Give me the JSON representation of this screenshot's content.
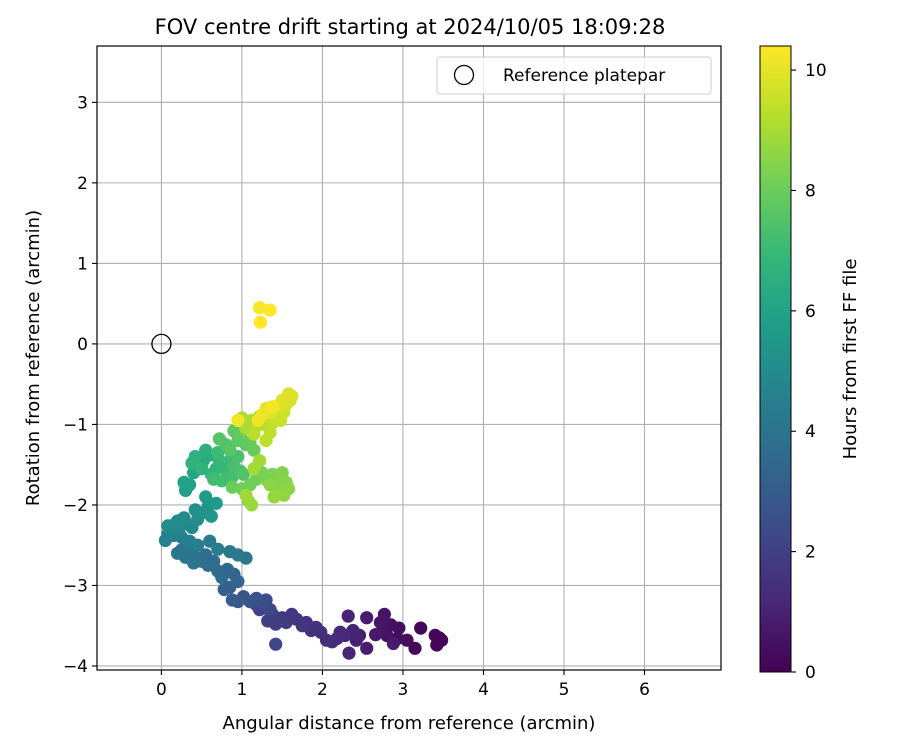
{
  "chart_data": {
    "type": "scatter",
    "title": "FOV centre drift starting at 2024/10/05 18:09:28",
    "xlabel": "Angular distance from reference (arcmin)",
    "ylabel": "Rotation from reference (arcmin)",
    "xlim": [
      -0.8,
      6.95
    ],
    "ylim": [
      -4.05,
      3.7
    ],
    "xticks": [
      0,
      1,
      2,
      3,
      4,
      5,
      6
    ],
    "yticks": [
      -4,
      -3,
      -2,
      -1,
      0,
      1,
      2,
      3
    ],
    "xticklabels": [
      "0",
      "1",
      "2",
      "3",
      "4",
      "5",
      "6"
    ],
    "yticklabels": [
      "−4",
      "−3",
      "−2",
      "−1",
      "0",
      "1",
      "2",
      "3"
    ],
    "grid": true,
    "legend": {
      "placement": "top-right",
      "entries": [
        {
          "label": "Reference platepar",
          "marker": "open-circle"
        }
      ]
    },
    "reference_point": {
      "x": 0,
      "y": 0
    },
    "colorbar": {
      "label": "Hours from first FF file",
      "colormap": "viridis",
      "range": [
        0,
        10.4
      ],
      "ticks": [
        0,
        2,
        4,
        6,
        8,
        10
      ],
      "ticklabels": [
        "0",
        "2",
        "4",
        "6",
        "8",
        "10"
      ]
    },
    "colormap_stops": [
      "#440154",
      "#482878",
      "#3e4989",
      "#31688e",
      "#26828e",
      "#1f9e89",
      "#35b779",
      "#6ece58",
      "#b5de2b",
      "#fde725"
    ],
    "points": [
      [
        3.45,
        -3.65,
        0.0
      ],
      [
        3.48,
        -3.68,
        0.05
      ],
      [
        3.42,
        -3.74,
        0.1
      ],
      [
        3.4,
        -3.62,
        0.15
      ],
      [
        3.22,
        -3.53,
        0.2
      ],
      [
        3.15,
        -3.78,
        0.25
      ],
      [
        3.05,
        -3.68,
        0.3
      ],
      [
        2.95,
        -3.53,
        0.35
      ],
      [
        2.93,
        -3.66,
        0.4
      ],
      [
        2.85,
        -3.49,
        0.45
      ],
      [
        2.8,
        -3.62,
        0.5
      ],
      [
        2.77,
        -3.36,
        0.55
      ],
      [
        2.75,
        -3.56,
        0.6
      ],
      [
        2.72,
        -3.46,
        0.65
      ],
      [
        2.66,
        -3.61,
        0.7
      ],
      [
        2.88,
        -3.72,
        0.75
      ],
      [
        2.55,
        -3.4,
        0.8
      ],
      [
        2.55,
        -3.78,
        0.85
      ],
      [
        2.46,
        -3.62,
        0.9
      ],
      [
        2.42,
        -3.68,
        0.95
      ],
      [
        2.38,
        -3.56,
        1.0
      ],
      [
        2.32,
        -3.38,
        1.05
      ],
      [
        2.33,
        -3.84,
        1.1
      ],
      [
        2.28,
        -3.62,
        1.15
      ],
      [
        2.22,
        -3.58,
        1.2
      ],
      [
        2.18,
        -3.66,
        1.25
      ],
      [
        2.12,
        -3.7,
        1.3
      ],
      [
        2.05,
        -3.68,
        1.35
      ],
      [
        1.98,
        -3.58,
        1.4
      ],
      [
        1.92,
        -3.52,
        1.45
      ],
      [
        1.86,
        -3.56,
        1.5
      ],
      [
        1.8,
        -3.46,
        1.55
      ],
      [
        1.75,
        -3.5,
        1.6
      ],
      [
        1.68,
        -3.42,
        1.65
      ],
      [
        1.62,
        -3.36,
        1.7
      ],
      [
        1.55,
        -3.46,
        1.75
      ],
      [
        1.5,
        -3.4,
        1.8
      ],
      [
        1.42,
        -3.48,
        1.85
      ],
      [
        1.38,
        -3.36,
        1.9
      ],
      [
        1.32,
        -3.44,
        1.95
      ],
      [
        1.28,
        -3.28,
        2.0
      ],
      [
        1.22,
        -3.3,
        2.05
      ],
      [
        1.18,
        -3.24,
        2.1
      ],
      [
        1.42,
        -3.73,
        2.2
      ],
      [
        1.35,
        -3.3,
        2.3
      ],
      [
        1.3,
        -3.18,
        2.4
      ],
      [
        1.25,
        -3.22,
        2.5
      ],
      [
        1.18,
        -3.16,
        2.6
      ],
      [
        1.1,
        -3.2,
        2.7
      ],
      [
        1.02,
        -3.14,
        2.8
      ],
      [
        0.95,
        -3.2,
        2.9
      ],
      [
        0.88,
        -3.18,
        3.0
      ],
      [
        0.85,
        -3.02,
        3.1
      ],
      [
        0.78,
        -3.05,
        3.2
      ],
      [
        0.95,
        -2.95,
        3.3
      ],
      [
        0.9,
        -2.86,
        3.4
      ],
      [
        0.82,
        -2.8,
        3.5
      ],
      [
        0.75,
        -2.9,
        3.55
      ],
      [
        0.7,
        -2.82,
        3.6
      ],
      [
        0.65,
        -2.7,
        3.65
      ],
      [
        0.58,
        -2.75,
        3.7
      ],
      [
        0.55,
        -2.62,
        3.75
      ],
      [
        0.5,
        -2.7,
        3.8
      ],
      [
        0.45,
        -2.66,
        3.85
      ],
      [
        0.4,
        -2.72,
        3.9
      ],
      [
        0.35,
        -2.6,
        3.95
      ],
      [
        0.3,
        -2.65,
        4.0
      ],
      [
        0.25,
        -2.56,
        4.05
      ],
      [
        0.2,
        -2.6,
        4.1
      ],
      [
        1.05,
        -2.66,
        4.15
      ],
      [
        0.95,
        -2.62,
        4.2
      ],
      [
        0.85,
        -2.58,
        4.25
      ],
      [
        0.7,
        -2.55,
        4.3
      ],
      [
        0.6,
        -2.45,
        4.35
      ],
      [
        0.45,
        -2.5,
        4.4
      ],
      [
        0.35,
        -2.45,
        4.45
      ],
      [
        0.25,
        -2.4,
        4.5
      ],
      [
        0.15,
        -2.38,
        4.55
      ],
      [
        0.08,
        -2.36,
        4.6
      ],
      [
        0.05,
        -2.44,
        4.65
      ],
      [
        0.1,
        -2.3,
        4.7
      ],
      [
        0.15,
        -2.25,
        4.75
      ],
      [
        0.22,
        -2.3,
        4.8
      ],
      [
        0.3,
        -2.22,
        4.85
      ],
      [
        0.38,
        -2.28,
        4.9
      ],
      [
        0.28,
        -2.16,
        4.95
      ],
      [
        0.2,
        -2.2,
        5.0
      ],
      [
        0.08,
        -2.26,
        5.05
      ],
      [
        0.45,
        -2.18,
        5.1
      ],
      [
        0.42,
        -2.06,
        5.2
      ],
      [
        0.5,
        -2.1,
        5.3
      ],
      [
        0.58,
        -2.02,
        5.4
      ],
      [
        0.62,
        -2.14,
        5.5
      ],
      [
        0.68,
        -1.98,
        5.6
      ],
      [
        0.55,
        -1.9,
        5.7
      ],
      [
        0.3,
        -1.82,
        5.8
      ],
      [
        0.35,
        -1.75,
        5.9
      ],
      [
        0.28,
        -1.72,
        6.0
      ],
      [
        0.4,
        -1.6,
        6.1
      ],
      [
        0.45,
        -1.5,
        6.2
      ],
      [
        0.52,
        -1.45,
        6.3
      ],
      [
        0.6,
        -1.38,
        6.4
      ],
      [
        0.55,
        -1.32,
        6.5
      ],
      [
        0.42,
        -1.4,
        6.6
      ],
      [
        0.38,
        -1.48,
        6.7
      ],
      [
        0.5,
        -1.55,
        6.75
      ],
      [
        0.62,
        -1.62,
        6.8
      ],
      [
        0.68,
        -1.55,
        6.85
      ],
      [
        0.72,
        -1.45,
        6.9
      ],
      [
        0.78,
        -1.5,
        6.95
      ],
      [
        0.82,
        -1.6,
        7.0
      ],
      [
        0.85,
        -1.45,
        7.05
      ],
      [
        0.7,
        -1.35,
        7.1
      ],
      [
        0.65,
        -1.68,
        7.15
      ],
      [
        0.75,
        -1.7,
        7.2
      ],
      [
        0.88,
        -1.65,
        7.25
      ],
      [
        0.9,
        -1.52,
        7.3
      ],
      [
        0.95,
        -1.4,
        7.35
      ],
      [
        0.98,
        -1.58,
        7.4
      ],
      [
        1.02,
        -1.62,
        7.5
      ],
      [
        0.8,
        -1.25,
        7.55
      ],
      [
        0.72,
        -1.18,
        7.6
      ],
      [
        0.85,
        -1.32,
        7.65
      ],
      [
        0.95,
        -1.2,
        7.7
      ],
      [
        1.05,
        -1.25,
        7.75
      ],
      [
        0.9,
        -1.08,
        7.8
      ],
      [
        0.98,
        -1.15,
        7.85
      ],
      [
        1.1,
        -1.22,
        7.9
      ],
      [
        1.15,
        -1.32,
        7.95
      ],
      [
        0.88,
        -1.78,
        8.0
      ],
      [
        1.0,
        -1.8,
        8.05
      ],
      [
        1.1,
        -1.75,
        8.1
      ],
      [
        1.18,
        -1.68,
        8.15
      ],
      [
        1.25,
        -1.6,
        8.2
      ],
      [
        1.32,
        -1.7,
        8.25
      ],
      [
        1.38,
        -1.62,
        8.3
      ],
      [
        1.45,
        -1.68,
        8.35
      ],
      [
        1.5,
        -1.6,
        8.4
      ],
      [
        1.55,
        -1.72,
        8.45
      ],
      [
        1.45,
        -1.82,
        8.5
      ],
      [
        1.35,
        -1.75,
        8.55
      ],
      [
        1.58,
        -1.8,
        8.6
      ],
      [
        1.52,
        -1.88,
        8.65
      ],
      [
        1.4,
        -1.9,
        8.7
      ],
      [
        1.08,
        -1.95,
        8.75
      ],
      [
        1.12,
        -2.0,
        8.8
      ],
      [
        1.05,
        -1.88,
        8.85
      ],
      [
        1.15,
        -1.55,
        8.9
      ],
      [
        1.22,
        -1.45,
        8.95
      ],
      [
        1.05,
        -1.05,
        9.0
      ],
      [
        1.12,
        -0.95,
        9.05
      ],
      [
        1.0,
        -0.92,
        9.1
      ],
      [
        1.18,
        -1.02,
        9.15
      ],
      [
        1.22,
        -0.9,
        9.2
      ],
      [
        1.28,
        -1.0,
        9.25
      ],
      [
        1.15,
        -1.12,
        9.3
      ],
      [
        1.3,
        -1.2,
        9.35
      ],
      [
        1.35,
        -1.1,
        9.4
      ],
      [
        1.38,
        -0.98,
        9.45
      ],
      [
        1.42,
        -0.9,
        9.5
      ],
      [
        1.45,
        -0.82,
        9.55
      ],
      [
        1.48,
        -0.95,
        9.6
      ],
      [
        1.52,
        -0.85,
        9.65
      ],
      [
        1.55,
        -0.75,
        9.7
      ],
      [
        1.6,
        -0.7,
        9.75
      ],
      [
        1.62,
        -0.65,
        9.8
      ],
      [
        1.58,
        -0.62,
        9.85
      ],
      [
        1.5,
        -0.7,
        9.9
      ],
      [
        1.42,
        -0.78,
        9.95
      ],
      [
        1.35,
        -0.85,
        10.0
      ],
      [
        1.3,
        -0.8,
        10.05
      ],
      [
        1.25,
        -0.88,
        10.1
      ],
      [
        1.2,
        -0.95,
        10.15
      ],
      [
        0.95,
        -0.95,
        10.2
      ],
      [
        1.38,
        -0.78,
        10.25
      ],
      [
        1.22,
        0.45,
        10.3
      ],
      [
        1.35,
        0.42,
        10.35
      ],
      [
        1.23,
        0.27,
        10.4
      ]
    ]
  }
}
